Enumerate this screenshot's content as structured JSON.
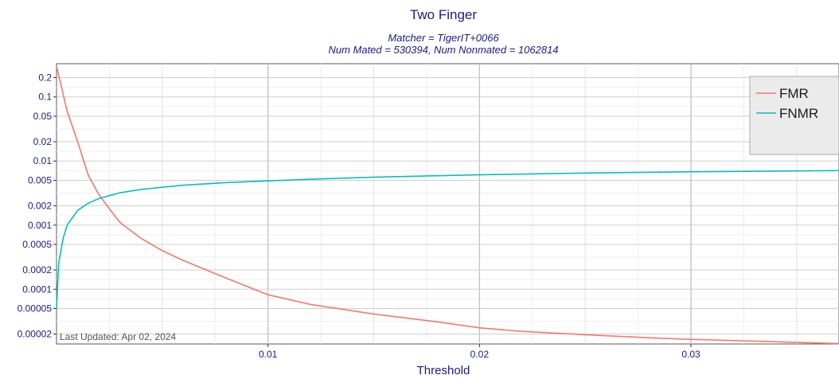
{
  "chart_data": {
    "type": "line",
    "title": "Two Finger",
    "subtitle_lines": [
      "Matcher = TigerIT+0066",
      "Num Mated = 530394, Num Nonmated = 1062814"
    ],
    "xlabel": "Threshold",
    "ylabel": "",
    "x_scale": "linear",
    "y_scale": "log",
    "xlim": [
      0,
      0.037
    ],
    "ylim": [
      1.4e-05,
      0.33
    ],
    "x_ticks": [
      {
        "value": 0.01,
        "label": "0.01"
      },
      {
        "value": 0.02,
        "label": "0.02"
      },
      {
        "value": 0.03,
        "label": "0.03"
      }
    ],
    "y_ticks": [
      {
        "value": 0.2,
        "label": "0.2"
      },
      {
        "value": 0.1,
        "label": "0.1"
      },
      {
        "value": 0.05,
        "label": "0.05"
      },
      {
        "value": 0.02,
        "label": "0.02"
      },
      {
        "value": 0.01,
        "label": "0.01"
      },
      {
        "value": 0.005,
        "label": "0.005"
      },
      {
        "value": 0.002,
        "label": "0.002"
      },
      {
        "value": 0.001,
        "label": "0.001"
      },
      {
        "value": 0.0005,
        "label": "0.0005"
      },
      {
        "value": 0.0002,
        "label": "0.0002"
      },
      {
        "value": 0.0001,
        "label": "0.0001"
      },
      {
        "value": 5e-05,
        "label": "0.00005"
      },
      {
        "value": 2e-05,
        "label": "0.00002"
      }
    ],
    "grid": true,
    "legend_position": "top-right",
    "series": [
      {
        "name": "FMR",
        "color": "#f8766d",
        "x": [
          0,
          0.0002,
          0.0005,
          0.001,
          0.0015,
          0.002,
          0.0025,
          0.003,
          0.004,
          0.005,
          0.006,
          0.008,
          0.01,
          0.012,
          0.015,
          0.018,
          0.02,
          0.022,
          0.025,
          0.028,
          0.03,
          0.033,
          0.035,
          0.037
        ],
        "y": [
          0.3,
          0.16,
          0.06,
          0.02,
          0.006,
          0.003,
          0.0018,
          0.0011,
          0.00062,
          0.0004,
          0.00028,
          0.00015,
          8.2e-05,
          5.8e-05,
          4.1e-05,
          3.1e-05,
          2.5e-05,
          2.2e-05,
          1.95e-05,
          1.75e-05,
          1.65e-05,
          1.55e-05,
          1.48e-05,
          1.42e-05
        ]
      },
      {
        "name": "FNMR",
        "color": "#00bfc4",
        "x": [
          0,
          0.0001,
          0.0003,
          0.0005,
          0.001,
          0.0015,
          0.002,
          0.003,
          0.004,
          0.005,
          0.006,
          0.008,
          0.01,
          0.012,
          0.015,
          0.018,
          0.02,
          0.025,
          0.03,
          0.035,
          0.037
        ],
        "y": [
          5e-05,
          0.00025,
          0.0006,
          0.001,
          0.0017,
          0.0022,
          0.0026,
          0.0032,
          0.0036,
          0.0039,
          0.0042,
          0.0046,
          0.0049,
          0.0052,
          0.0056,
          0.0059,
          0.0061,
          0.0065,
          0.0068,
          0.007,
          0.0071
        ]
      }
    ],
    "annotation": "Last Updated: Apr 02, 2024"
  }
}
